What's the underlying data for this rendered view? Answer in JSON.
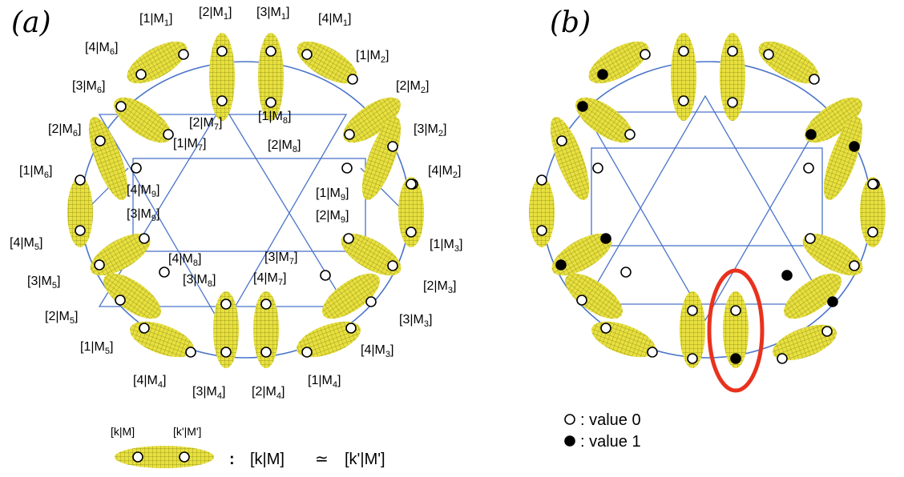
{
  "panels": {
    "a": {
      "title": "(a)"
    },
    "b": {
      "title": "(b)"
    }
  },
  "labels_a": [
    {
      "main": "[1|M",
      "sub": "1",
      "end": "]"
    },
    {
      "main": "[2|M",
      "sub": "1",
      "end": "]"
    },
    {
      "main": "[3|M",
      "sub": "1",
      "end": "]"
    },
    {
      "main": "[4|M",
      "sub": "1",
      "end": "]"
    },
    {
      "main": "[4|M",
      "sub": "6",
      "end": "]"
    },
    {
      "main": "[1|M",
      "sub": "2",
      "end": "]"
    },
    {
      "main": "[3|M",
      "sub": "6",
      "end": "]"
    },
    {
      "main": "[2|M",
      "sub": "2",
      "end": "]"
    },
    {
      "main": "[2|M",
      "sub": "7",
      "end": "]"
    },
    {
      "main": "[1|M",
      "sub": "8",
      "end": "]"
    },
    {
      "main": "[2|M",
      "sub": "6",
      "end": "]"
    },
    {
      "main": "[3|M",
      "sub": "2",
      "end": "]"
    },
    {
      "main": "[1|M",
      "sub": "7",
      "end": "]"
    },
    {
      "main": "[2|M",
      "sub": "8",
      "end": "]"
    },
    {
      "main": "[1|M",
      "sub": "6",
      "end": "]"
    },
    {
      "main": "[4|M",
      "sub": "2",
      "end": "]"
    },
    {
      "main": "[4|M",
      "sub": "9",
      "end": "]"
    },
    {
      "main": "[1|M",
      "sub": "9",
      "end": "]"
    },
    {
      "main": "[3|M",
      "sub": "9",
      "end": "]"
    },
    {
      "main": "[2|M",
      "sub": "9",
      "end": "]"
    },
    {
      "main": "[4|M",
      "sub": "5",
      "end": "]"
    },
    {
      "main": "[1|M",
      "sub": "3",
      "end": "]"
    },
    {
      "main": "[4|M",
      "sub": "8",
      "end": "]"
    },
    {
      "main": "[3|M",
      "sub": "7",
      "end": "]"
    },
    {
      "main": "[3|M",
      "sub": "5",
      "end": "]"
    },
    {
      "main": "[3|M",
      "sub": "8",
      "end": "]"
    },
    {
      "main": "[4|M",
      "sub": "7",
      "end": "]"
    },
    {
      "main": "[2|M",
      "sub": "3",
      "end": "]"
    },
    {
      "main": "[2|M",
      "sub": "5",
      "end": "]"
    },
    {
      "main": "[3|M",
      "sub": "3",
      "end": "]"
    },
    {
      "main": "[1|M",
      "sub": "5",
      "end": "]"
    },
    {
      "main": "[4|M",
      "sub": "3",
      "end": "]"
    },
    {
      "main": "[4|M",
      "sub": "4",
      "end": "]"
    },
    {
      "main": "[3|M",
      "sub": "4",
      "end": "]"
    },
    {
      "main": "[2|M",
      "sub": "4",
      "end": "]"
    },
    {
      "main": "[1|M",
      "sub": "4",
      "end": "]"
    }
  ],
  "legend_a": {
    "left_label": "[k|M]",
    "right_label": "[k'|M']",
    "colon": ":",
    "relation_left": "[k|M]",
    "relation_symbol": "≃",
    "relation_right": "[k'|M']"
  },
  "legend_b": {
    "value0": ": value 0",
    "value1": ": value 1"
  },
  "colors": {
    "ellipse_fill": "#e8e040",
    "grid_line": "#8a8a10",
    "connector": "#4a74c9",
    "highlight": "#e8321e"
  },
  "panel_b_values": [
    0,
    1,
    0,
    0,
    0,
    0,
    1,
    0,
    0,
    0,
    1,
    1,
    0,
    0,
    0,
    0,
    0,
    0,
    1,
    1,
    0,
    0,
    0,
    0,
    0,
    0,
    0,
    1,
    1,
    0,
    0,
    0,
    0,
    0,
    0,
    0,
    0,
    0,
    0,
    0,
    0,
    0,
    0,
    0,
    0,
    1,
    0,
    0,
    0,
    0,
    0,
    0,
    0,
    0,
    0,
    0,
    0,
    0,
    0,
    0,
    0,
    0,
    0,
    0,
    0,
    0,
    0,
    0,
    0,
    0,
    0,
    0
  ]
}
